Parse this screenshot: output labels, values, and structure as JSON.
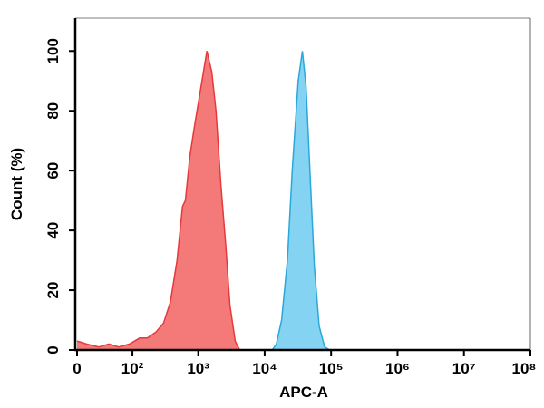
{
  "chart_data": {
    "type": "area",
    "x_label": "APC-A",
    "y_label": "Count (%)",
    "xscale": "asinh",
    "xlim": [
      0,
      100000000
    ],
    "xticks": [
      0,
      {
        "value": 100,
        "label": "10²"
      },
      {
        "value": 1000,
        "label": "10³"
      },
      {
        "value": 10000,
        "label": "10⁴"
      },
      {
        "value": 100000,
        "label": "10⁵"
      },
      {
        "value": 1000000,
        "label": "10⁶"
      },
      {
        "value": 10000000,
        "label": "10⁷"
      },
      {
        "value": 100000000,
        "label": "10⁸"
      }
    ],
    "ylim": [
      0,
      111
    ],
    "yticks": [
      0,
      20,
      40,
      60,
      80,
      100
    ],
    "series": [
      {
        "color": "#f47a7a",
        "edge": "#e5393b",
        "x": [
          0,
          10,
          25,
          40,
          60,
          90,
          130,
          170,
          230,
          300,
          380,
          480,
          580,
          640,
          750,
          880,
          1100,
          1350,
          1600,
          1850,
          2200,
          2600,
          3000,
          3600,
          4200
        ],
        "values": [
          3,
          2,
          1,
          2,
          1,
          2,
          4,
          4,
          6,
          9,
          16,
          30,
          48,
          50,
          65,
          75,
          88,
          100,
          93,
          80,
          55,
          35,
          15,
          3,
          0
        ]
      },
      {
        "color": "#84d3f3",
        "edge": "#2aa8da",
        "x": [
          13000,
          15000,
          18000,
          22000,
          26000,
          32000,
          37000,
          42000,
          48000,
          56000,
          66000,
          80000,
          95000
        ],
        "values": [
          0,
          2,
          10,
          30,
          60,
          90,
          100,
          88,
          60,
          28,
          8,
          1,
          0
        ]
      }
    ]
  }
}
